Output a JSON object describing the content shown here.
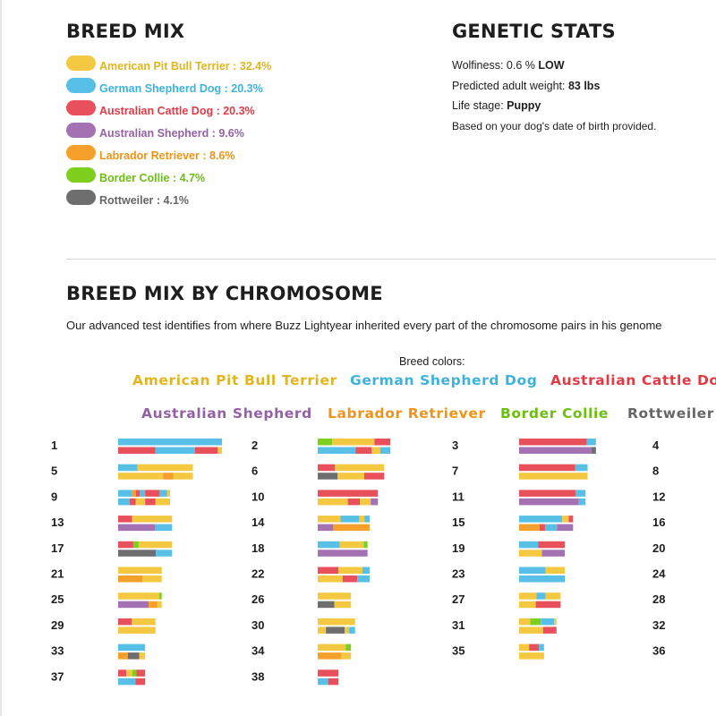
{
  "breed_mix": {
    "title": "BREED MIX",
    "items": [
      {
        "label": "American Pit Bull Terrier : 32.4%",
        "percent": 32.4,
        "color": "#f5c842"
      },
      {
        "label": "German Shepherd Dog : 20.3%",
        "percent": 20.3,
        "color": "#58c0e6"
      },
      {
        "label": "Australian Cattle Dog : 20.3%",
        "percent": 20.3,
        "color": "#e8505b"
      },
      {
        "label": "Australian Shepherd : 9.6%",
        "percent": 9.6,
        "color": "#a472b2"
      },
      {
        "label": "Labrador Retriever : 8.6%",
        "percent": 8.6,
        "color": "#f5a02a"
      },
      {
        "label": "Border Collie : 4.7%",
        "percent": 4.7,
        "color": "#7fcf1e"
      },
      {
        "label": "Rottweiler : 4.1%",
        "percent": 4.1,
        "color": "#6e6e6e"
      }
    ],
    "text_colors": [
      "#e0b51f",
      "#3db3dc",
      "#e23a45",
      "#9460a6",
      "#ef9418",
      "#6cbf12",
      "#666666"
    ]
  },
  "genetic_stats": {
    "title": "GENETIC STATS",
    "wolfiness_label": "Wolfiness: 0.6 %",
    "wolfiness_value": "LOW",
    "weight_label": "Predicted adult weight:",
    "weight_value": "83 lbs",
    "life_stage_label": "Life stage:",
    "life_stage_value": "Puppy",
    "note": "Based on your dog's date of birth provided."
  },
  "chromosome_section": {
    "title": "BREED MIX BY CHROMOSOME",
    "description": "Our advanced test identifies from where Buzz Lightyear inherited every part of the chromosome pairs in his genome",
    "colors_caption": "Breed colors:",
    "breed_labels_row1": [
      "American Pit Bull Terrier",
      "German Shepherd Dog",
      "Australian Cattle Dog"
    ],
    "breed_labels_row2": [
      "Australian Shepherd",
      "Labrador Retriever",
      "Border Collie",
      "Rottweiler"
    ]
  },
  "chart_data": {
    "type": "stacked-segment-bars",
    "breeds": {
      "P": {
        "name": "American Pit Bull Terrier",
        "color": "#f5c842"
      },
      "G": {
        "name": "German Shepherd Dog",
        "color": "#58c0e6"
      },
      "C": {
        "name": "Australian Cattle Dog",
        "color": "#e8505b"
      },
      "A": {
        "name": "Australian Shepherd",
        "color": "#a472b2"
      },
      "L": {
        "name": "Labrador Retriever",
        "color": "#f5a02a"
      },
      "B": {
        "name": "Border Collie",
        "color": "#7fcf1e"
      },
      "R": {
        "name": "Rottweiler",
        "color": "#6e6e6e"
      }
    },
    "chromosomes": [
      {
        "n": 1,
        "length": 1.0,
        "top": [
          [
            "G",
            1.0
          ]
        ],
        "bottom": [
          [
            "C",
            0.36
          ],
          [
            "G",
            0.38
          ],
          [
            "C",
            0.22
          ],
          [
            "P",
            0.04
          ]
        ]
      },
      {
        "n": 2,
        "length": 0.7,
        "top": [
          [
            "B",
            0.2
          ],
          [
            "P",
            0.58
          ],
          [
            "C",
            0.22
          ]
        ],
        "bottom": [
          [
            "G",
            0.52
          ],
          [
            "C",
            0.22
          ],
          [
            "P",
            0.12
          ],
          [
            "G",
            0.14
          ]
        ]
      },
      {
        "n": 3,
        "length": 0.74,
        "top": [
          [
            "C",
            0.88
          ],
          [
            "G",
            0.12
          ]
        ],
        "bottom": [
          [
            "A",
            0.94
          ],
          [
            "R",
            0.06
          ]
        ]
      },
      {
        "n": 4,
        "length": 0.72,
        "top": [],
        "bottom": []
      },
      {
        "n": 5,
        "length": 0.72,
        "top": [
          [
            "G",
            0.26
          ],
          [
            "P",
            0.74
          ]
        ],
        "bottom": [
          [
            "P",
            0.6
          ],
          [
            "L",
            0.14
          ],
          [
            "P",
            0.26
          ]
        ]
      },
      {
        "n": 6,
        "length": 0.64,
        "top": [
          [
            "C",
            0.26
          ],
          [
            "P",
            0.74
          ]
        ],
        "bottom": [
          [
            "R",
            0.3
          ],
          [
            "P",
            0.4
          ],
          [
            "C",
            0.3
          ]
        ]
      },
      {
        "n": 7,
        "length": 0.66,
        "top": [
          [
            "C",
            0.82
          ],
          [
            "G",
            0.18
          ]
        ],
        "bottom": [
          [
            "P",
            1.0
          ]
        ]
      },
      {
        "n": 8,
        "length": 0.62,
        "top": [],
        "bottom": []
      },
      {
        "n": 9,
        "length": 0.5,
        "top": [
          [
            "G",
            0.26
          ],
          [
            "L",
            0.08
          ],
          [
            "C",
            0.08
          ],
          [
            "G",
            0.1
          ],
          [
            "C",
            0.28
          ],
          [
            "G",
            0.14
          ],
          [
            "P",
            0.06
          ]
        ],
        "bottom": [
          [
            "G",
            0.22
          ],
          [
            "C",
            0.12
          ],
          [
            "P",
            0.18
          ],
          [
            "C",
            0.2
          ],
          [
            "P",
            0.28
          ]
        ]
      },
      {
        "n": 10,
        "length": 0.58,
        "top": [
          [
            "C",
            1.0
          ]
        ],
        "bottom": [
          [
            "P",
            0.5
          ],
          [
            "C",
            0.2
          ],
          [
            "P",
            0.18
          ],
          [
            "A",
            0.12
          ]
        ]
      },
      {
        "n": 11,
        "length": 0.64,
        "top": [
          [
            "C",
            0.85
          ],
          [
            "G",
            0.15
          ]
        ],
        "bottom": [
          [
            "A",
            0.9
          ],
          [
            "G",
            0.1
          ]
        ]
      },
      {
        "n": 12,
        "length": 0.6,
        "top": [],
        "bottom": []
      },
      {
        "n": 13,
        "length": 0.52,
        "top": [
          [
            "C",
            0.26
          ],
          [
            "P",
            0.74
          ]
        ],
        "bottom": [
          [
            "A",
            0.68
          ],
          [
            "G",
            0.32
          ]
        ]
      },
      {
        "n": 14,
        "length": 0.5,
        "top": [
          [
            "P",
            0.44
          ],
          [
            "G",
            0.36
          ],
          [
            "P",
            0.1
          ],
          [
            "G",
            0.1
          ]
        ],
        "bottom": [
          [
            "A",
            0.3
          ],
          [
            "L",
            0.7
          ]
        ]
      },
      {
        "n": 15,
        "length": 0.52,
        "top": [
          [
            "G",
            0.8
          ],
          [
            "P",
            0.12
          ],
          [
            "C",
            0.08
          ]
        ],
        "bottom": [
          [
            "L",
            0.38
          ],
          [
            "C",
            0.1
          ],
          [
            "G",
            0.22
          ],
          [
            "A",
            0.3
          ]
        ]
      },
      {
        "n": 16,
        "length": 0.54,
        "top": [],
        "bottom": []
      },
      {
        "n": 17,
        "length": 0.52,
        "top": [
          [
            "C",
            0.28
          ],
          [
            "B",
            0.1
          ],
          [
            "P",
            0.62
          ]
        ],
        "bottom": [
          [
            "R",
            0.7
          ],
          [
            "G",
            0.3
          ]
        ]
      },
      {
        "n": 18,
        "length": 0.48,
        "top": [
          [
            "G",
            0.44
          ],
          [
            "P",
            0.48
          ],
          [
            "B",
            0.08
          ]
        ],
        "bottom": [
          [
            "A",
            1.0
          ]
        ]
      },
      {
        "n": 19,
        "length": 0.44,
        "top": [
          [
            "G",
            0.42
          ],
          [
            "C",
            0.58
          ]
        ],
        "bottom": [
          [
            "P",
            0.5
          ],
          [
            "A",
            0.5
          ]
        ]
      },
      {
        "n": 20,
        "length": 0.46,
        "top": [],
        "bottom": []
      },
      {
        "n": 21,
        "length": 0.42,
        "top": [
          [
            "P",
            1.0
          ]
        ],
        "bottom": [
          [
            "L",
            0.56
          ],
          [
            "P",
            0.44
          ]
        ]
      },
      {
        "n": 22,
        "length": 0.5,
        "top": [
          [
            "C",
            0.4
          ],
          [
            "P",
            0.46
          ],
          [
            "G",
            0.14
          ]
        ],
        "bottom": [
          [
            "P",
            0.48
          ],
          [
            "C",
            0.28
          ],
          [
            "G",
            0.24
          ]
        ]
      },
      {
        "n": 23,
        "length": 0.44,
        "top": [
          [
            "G",
            0.58
          ],
          [
            "P",
            0.42
          ]
        ],
        "bottom": [
          [
            "G",
            1.0
          ]
        ]
      },
      {
        "n": 24,
        "length": 0.42,
        "top": [],
        "bottom": []
      },
      {
        "n": 25,
        "length": 0.42,
        "top": [
          [
            "P",
            0.94
          ],
          [
            "B",
            0.06
          ]
        ],
        "bottom": [
          [
            "A",
            0.7
          ],
          [
            "L",
            0.2
          ],
          [
            "P",
            0.1
          ]
        ]
      },
      {
        "n": 26,
        "length": 0.32,
        "top": [
          [
            "P",
            1.0
          ]
        ],
        "bottom": [
          [
            "R",
            0.5
          ],
          [
            "P",
            0.5
          ]
        ]
      },
      {
        "n": 27,
        "length": 0.4,
        "top": [
          [
            "P",
            0.42
          ],
          [
            "G",
            0.22
          ],
          [
            "P",
            0.36
          ]
        ],
        "bottom": [
          [
            "P",
            0.4
          ],
          [
            "C",
            0.6
          ]
        ]
      },
      {
        "n": 28,
        "length": 0.4,
        "top": [],
        "bottom": []
      },
      {
        "n": 29,
        "length": 0.36,
        "top": [
          [
            "C",
            0.36
          ],
          [
            "P",
            0.64
          ]
        ],
        "bottom": [
          [
            "P",
            1.0
          ]
        ]
      },
      {
        "n": 30,
        "length": 0.36,
        "top": [
          [
            "P",
            1.0
          ]
        ],
        "bottom": [
          [
            "P",
            0.22
          ],
          [
            "R",
            0.5
          ],
          [
            "P",
            0.12
          ],
          [
            "G",
            0.16
          ]
        ]
      },
      {
        "n": 31,
        "length": 0.36,
        "top": [
          [
            "P",
            0.3
          ],
          [
            "B",
            0.28
          ],
          [
            "G",
            0.36
          ],
          [
            "P",
            0.06
          ]
        ],
        "bottom": [
          [
            "P",
            0.64
          ],
          [
            "C",
            0.36
          ]
        ]
      },
      {
        "n": 32,
        "length": 0.34,
        "top": [],
        "bottom": []
      },
      {
        "n": 33,
        "length": 0.26,
        "top": [
          [
            "G",
            1.0
          ]
        ],
        "bottom": [
          [
            "L",
            0.36
          ],
          [
            "R",
            0.42
          ],
          [
            "P",
            0.22
          ]
        ]
      },
      {
        "n": 34,
        "length": 0.32,
        "top": [
          [
            "P",
            0.84
          ],
          [
            "B",
            0.16
          ]
        ],
        "bottom": [
          [
            "L",
            0.7
          ],
          [
            "P",
            0.3
          ]
        ]
      },
      {
        "n": 35,
        "length": 0.24,
        "top": [
          [
            "P",
            0.4
          ],
          [
            "C",
            0.4
          ],
          [
            "G",
            0.2
          ]
        ],
        "bottom": [
          [
            "P",
            1.0
          ]
        ]
      },
      {
        "n": 36,
        "length": 0.26,
        "top": [],
        "bottom": []
      },
      {
        "n": 37,
        "length": 0.26,
        "top": [
          [
            "C",
            0.3
          ],
          [
            "P",
            0.22
          ],
          [
            "B",
            0.16
          ],
          [
            "C",
            0.32
          ]
        ],
        "bottom": [
          [
            "G",
            0.64
          ],
          [
            "C",
            0.36
          ]
        ]
      },
      {
        "n": 38,
        "length": 0.2,
        "top": [
          [
            "C",
            1.0
          ]
        ],
        "bottom": [
          [
            "G",
            0.5
          ],
          [
            "C",
            0.5
          ]
        ]
      }
    ]
  }
}
